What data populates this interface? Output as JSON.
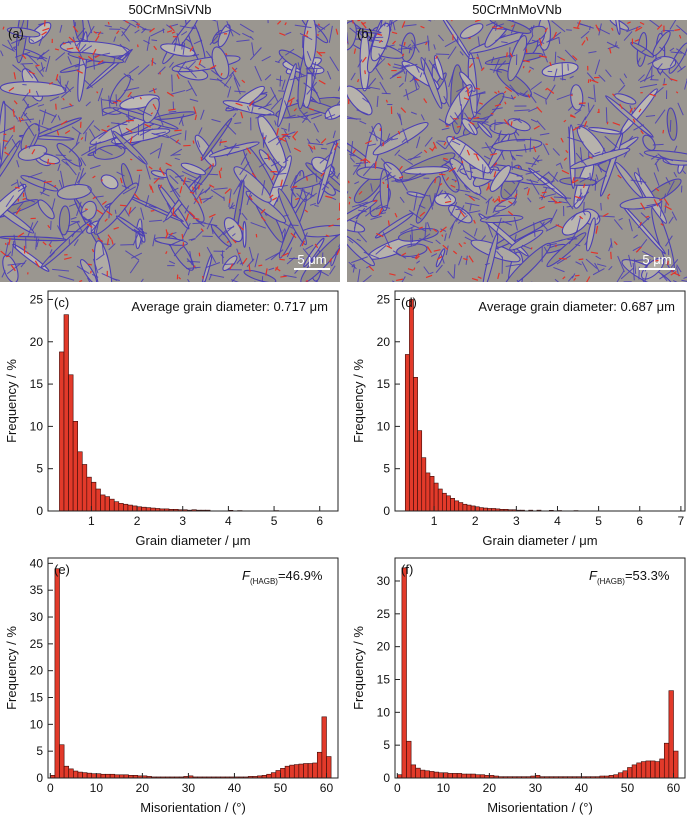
{
  "titles": {
    "left": "50CrMnSiVNb",
    "right": "50CrMnMoVNb"
  },
  "micrographs": {
    "a": {
      "letter": "(a)",
      "scale": "5 μm"
    },
    "b": {
      "letter": "(b)",
      "scale": "5 μm"
    }
  },
  "colors": {
    "bar": "#e23a2a",
    "bar_edge": "#3a0a08",
    "boundary": "#4b3fb5",
    "matrix": "#9a9690"
  },
  "chart_data": [
    {
      "id": "c",
      "type": "bar",
      "panel_label": "(c)",
      "annotation": "Average grain diameter: 0.717 μm",
      "xlabel": "Grain diameter / μm",
      "ylabel": "Frequency / %",
      "xlim": [
        0.05,
        6.4
      ],
      "ylim": [
        0,
        26
      ],
      "xticks": [
        1,
        2,
        3,
        4,
        5,
        6
      ],
      "yticks": [
        0,
        5,
        10,
        15,
        20,
        25
      ],
      "bin_width": 0.1,
      "x": [
        0.35,
        0.45,
        0.55,
        0.65,
        0.75,
        0.85,
        0.95,
        1.05,
        1.15,
        1.25,
        1.35,
        1.45,
        1.55,
        1.65,
        1.75,
        1.85,
        1.95,
        2.05,
        2.15,
        2.25,
        2.35,
        2.45,
        2.55,
        2.65,
        2.75,
        2.85,
        2.95,
        3.05,
        3.15,
        3.25,
        3.35,
        3.45,
        3.55,
        4.05,
        4.25,
        5.05
      ],
      "values": [
        18.8,
        23.2,
        16.1,
        10.6,
        7.0,
        5.5,
        4.0,
        3.4,
        2.6,
        1.9,
        1.7,
        1.4,
        1.1,
        0.9,
        0.8,
        0.7,
        0.6,
        0.5,
        0.45,
        0.4,
        0.35,
        0.3,
        0.25,
        0.25,
        0.2,
        0.2,
        0.15,
        0.15,
        0.1,
        0.15,
        0.1,
        0.1,
        0.1,
        0.08,
        0.05,
        0.05
      ]
    },
    {
      "id": "d",
      "type": "bar",
      "panel_label": "(d)",
      "annotation": "Average grain diameter: 0.687 μm",
      "xlabel": "Grain diameter / μm",
      "ylabel": "Frequency / %",
      "xlim": [
        0.05,
        7.1
      ],
      "ylim": [
        0,
        26
      ],
      "xticks": [
        1,
        2,
        3,
        4,
        5,
        6,
        7
      ],
      "yticks": [
        0,
        5,
        10,
        15,
        20,
        25
      ],
      "bin_width": 0.1,
      "x": [
        0.35,
        0.45,
        0.55,
        0.65,
        0.75,
        0.85,
        0.95,
        1.05,
        1.15,
        1.25,
        1.35,
        1.45,
        1.55,
        1.65,
        1.75,
        1.85,
        1.95,
        2.05,
        2.15,
        2.25,
        2.35,
        2.45,
        2.55,
        2.65,
        2.75,
        2.85,
        2.95,
        3.05,
        3.15,
        3.35,
        3.55,
        3.85,
        4.05,
        4.45
      ],
      "values": [
        18.5,
        25.0,
        15.8,
        9.5,
        6.3,
        4.5,
        4.1,
        3.3,
        2.6,
        2.1,
        1.8,
        1.5,
        1.2,
        1.0,
        0.8,
        0.7,
        0.6,
        0.5,
        0.4,
        0.35,
        0.3,
        0.3,
        0.25,
        0.2,
        0.2,
        0.15,
        0.15,
        0.1,
        0.1,
        0.1,
        0.1,
        0.08,
        0.06,
        0.05
      ]
    },
    {
      "id": "e",
      "type": "bar",
      "panel_label": "(e)",
      "annotation_main": "F",
      "annotation_sub": "(HAGB)",
      "annotation_value": "=46.9%",
      "xlabel": "Misorientation / (°)",
      "ylabel": "Frequency / %",
      "xlim": [
        -0.5,
        62.5
      ],
      "ylim": [
        0,
        41
      ],
      "xticks": [
        0,
        10,
        20,
        30,
        40,
        50,
        60
      ],
      "yticks": [
        0,
        5,
        10,
        15,
        20,
        25,
        30,
        35,
        40
      ],
      "bin_width": 1,
      "x": [
        0.5,
        1.5,
        2.5,
        3.5,
        4.5,
        5.5,
        6.5,
        7.5,
        8.5,
        9.5,
        10.5,
        11.5,
        12.5,
        13.5,
        14.5,
        15.5,
        16.5,
        17.5,
        18.5,
        19.5,
        20.5,
        21.5,
        22.5,
        23.5,
        24.5,
        25.5,
        26.5,
        27.5,
        28.5,
        29.5,
        30.5,
        31.5,
        32.5,
        33.5,
        34.5,
        35.5,
        36.5,
        37.5,
        38.5,
        39.5,
        40.5,
        41.5,
        42.5,
        43.5,
        44.5,
        45.5,
        46.5,
        47.5,
        48.5,
        49.5,
        50.5,
        51.5,
        52.5,
        53.5,
        54.5,
        55.5,
        56.5,
        57.5,
        58.5,
        59.5,
        60.5
      ],
      "values": [
        0.5,
        39.0,
        6.2,
        2.2,
        1.7,
        1.3,
        1.1,
        1.0,
        0.9,
        0.8,
        0.8,
        0.7,
        0.7,
        0.7,
        0.6,
        0.6,
        0.6,
        0.5,
        0.5,
        0.4,
        0.4,
        0.3,
        0.2,
        0.2,
        0.2,
        0.2,
        0.2,
        0.2,
        0.2,
        0.3,
        0.4,
        0.2,
        0.2,
        0.2,
        0.2,
        0.2,
        0.2,
        0.2,
        0.2,
        0.2,
        0.2,
        0.2,
        0.2,
        0.3,
        0.3,
        0.4,
        0.5,
        0.7,
        1.0,
        1.4,
        1.8,
        2.2,
        2.4,
        2.5,
        2.6,
        2.7,
        2.7,
        2.8,
        4.8,
        11.4,
        4.0
      ]
    },
    {
      "id": "f",
      "type": "bar",
      "panel_label": "(f)",
      "annotation_main": "F",
      "annotation_sub": "(HAGB)",
      "annotation_value": "=53.3%",
      "xlabel": "Misorientation / (°)",
      "ylabel": "Frequency / %",
      "xlim": [
        -0.5,
        62.5
      ],
      "ylim": [
        0,
        33.5
      ],
      "xticks": [
        0,
        10,
        20,
        30,
        40,
        50,
        60
      ],
      "yticks": [
        0,
        5,
        10,
        15,
        20,
        25,
        30
      ],
      "bin_width": 1,
      "x": [
        0.5,
        1.5,
        2.5,
        3.5,
        4.5,
        5.5,
        6.5,
        7.5,
        8.5,
        9.5,
        10.5,
        11.5,
        12.5,
        13.5,
        14.5,
        15.5,
        16.5,
        17.5,
        18.5,
        19.5,
        20.5,
        21.5,
        22.5,
        23.5,
        24.5,
        25.5,
        26.5,
        27.5,
        28.5,
        29.5,
        30.5,
        31.5,
        32.5,
        33.5,
        34.5,
        35.5,
        36.5,
        37.5,
        38.5,
        39.5,
        40.5,
        41.5,
        42.5,
        43.5,
        44.5,
        45.5,
        46.5,
        47.5,
        48.5,
        49.5,
        50.5,
        51.5,
        52.5,
        53.5,
        54.5,
        55.5,
        56.5,
        57.5,
        58.5,
        59.5,
        60.5
      ],
      "values": [
        0.5,
        32.0,
        5.6,
        2.0,
        1.5,
        1.2,
        1.1,
        1.0,
        0.9,
        0.8,
        0.8,
        0.7,
        0.7,
        0.7,
        0.6,
        0.6,
        0.6,
        0.5,
        0.5,
        0.4,
        0.4,
        0.3,
        0.2,
        0.2,
        0.2,
        0.2,
        0.2,
        0.2,
        0.2,
        0.3,
        0.4,
        0.2,
        0.2,
        0.2,
        0.2,
        0.2,
        0.2,
        0.2,
        0.2,
        0.2,
        0.2,
        0.2,
        0.2,
        0.2,
        0.3,
        0.3,
        0.4,
        0.5,
        0.8,
        1.1,
        1.6,
        2.0,
        2.3,
        2.5,
        2.6,
        2.6,
        2.5,
        2.9,
        5.3,
        13.3,
        4.1
      ]
    }
  ]
}
